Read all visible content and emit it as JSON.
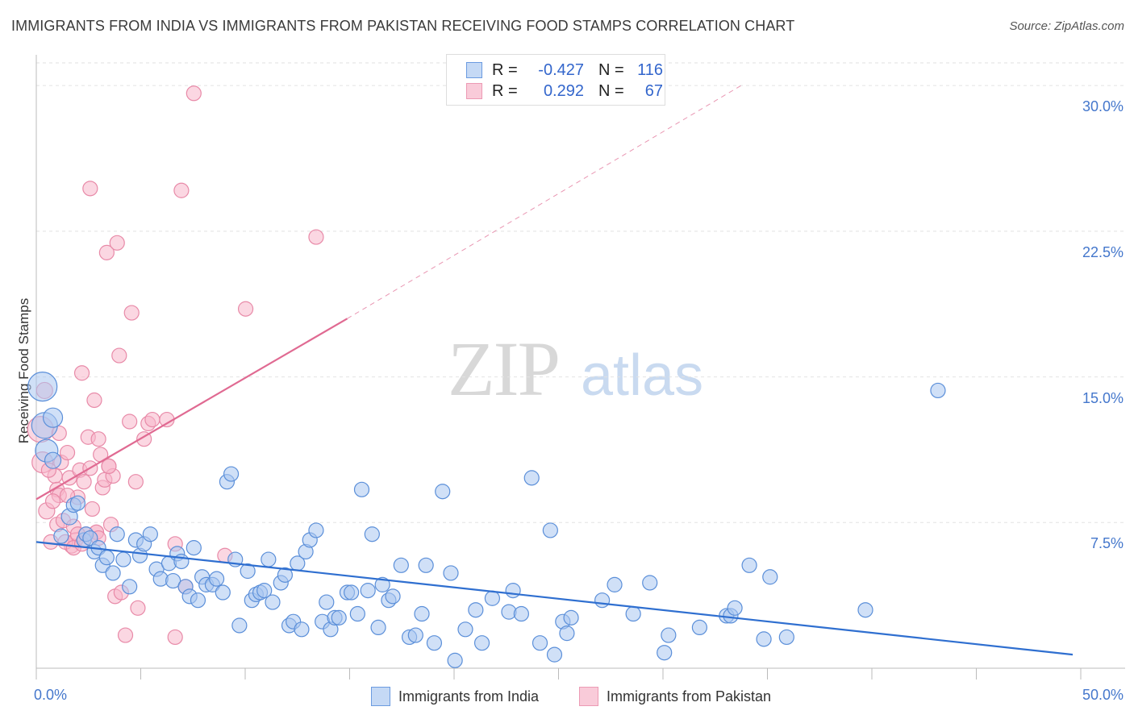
{
  "title": "IMMIGRANTS FROM INDIA VS IMMIGRANTS FROM PAKISTAN RECEIVING FOOD STAMPS CORRELATION CHART",
  "source": "Source: ZipAtlas.com",
  "watermark": {
    "zip": "ZIP",
    "atlas": "atlas"
  },
  "legend": {
    "r_label": "R =",
    "n_label": "N =",
    "india": {
      "r": "-0.427",
      "n": "116"
    },
    "pakistan": {
      "r": "0.292",
      "n": "67"
    }
  },
  "colors": {
    "india_fill": "#a9c7f0",
    "india_stroke": "#5b8fd9",
    "india_line": "#2f6fd0",
    "pakistan_fill": "#f7b6ca",
    "pakistan_stroke": "#e88aa8",
    "pakistan_line": "#e06a92",
    "tick_text": "#4477cc"
  },
  "chart_data": {
    "type": "scatter",
    "title": "IMMIGRANTS FROM INDIA VS IMMIGRANTS FROM PAKISTAN RECEIVING FOOD STAMPS CORRELATION CHART",
    "xlabel": "",
    "ylabel": "Receiving Food Stamps",
    "xlim": [
      0,
      50
    ],
    "ylim": [
      0,
      31.5
    ],
    "x_ticks": [
      "0.0%",
      "50.0%"
    ],
    "y_ticks": [
      {
        "value": 7.5,
        "label": "7.5%"
      },
      {
        "value": 15.0,
        "label": "15.0%"
      },
      {
        "value": 22.5,
        "label": "22.5%"
      },
      {
        "value": 30.0,
        "label": "30.0%"
      }
    ],
    "grid": true,
    "series": [
      {
        "name": "Immigrants from India",
        "trend": {
          "x": [
            0,
            50
          ],
          "y": [
            6.5,
            0.7
          ]
        },
        "points": [
          [
            0.3,
            14.5,
            18
          ],
          [
            0.4,
            12.5,
            16
          ],
          [
            0.5,
            11.2,
            14
          ],
          [
            0.8,
            12.9,
            12
          ],
          [
            0.8,
            10.7,
            10
          ],
          [
            1.6,
            7.8,
            10
          ],
          [
            1.8,
            8.4,
            9
          ],
          [
            2.0,
            8.5,
            9
          ],
          [
            2.3,
            6.6,
            9
          ],
          [
            2.4,
            6.9,
            9
          ],
          [
            2.6,
            6.7,
            9
          ],
          [
            2.8,
            6.0,
            9
          ],
          [
            3.0,
            6.2,
            9
          ],
          [
            3.2,
            5.3,
            9
          ],
          [
            3.4,
            5.7,
            9
          ],
          [
            3.7,
            4.9,
            9
          ],
          [
            3.9,
            6.9,
            9
          ],
          [
            4.2,
            5.6,
            9
          ],
          [
            4.5,
            4.2,
            9
          ],
          [
            4.8,
            6.6,
            9
          ],
          [
            5.0,
            5.8,
            9
          ],
          [
            5.2,
            6.4,
            9
          ],
          [
            5.5,
            6.9,
            9
          ],
          [
            5.8,
            5.1,
            9
          ],
          [
            6.0,
            4.6,
            9
          ],
          [
            6.4,
            5.4,
            9
          ],
          [
            6.6,
            4.5,
            9
          ],
          [
            6.8,
            5.9,
            9
          ],
          [
            7.0,
            5.5,
            9
          ],
          [
            7.2,
            4.2,
            9
          ],
          [
            7.4,
            3.7,
            9
          ],
          [
            7.6,
            6.2,
            9
          ],
          [
            7.8,
            3.5,
            9
          ],
          [
            8.0,
            4.7,
            9
          ],
          [
            8.2,
            4.3,
            9
          ],
          [
            8.5,
            4.3,
            9
          ],
          [
            8.7,
            4.6,
            9
          ],
          [
            9.0,
            3.9,
            9
          ],
          [
            9.2,
            9.6,
            9
          ],
          [
            9.4,
            10.0,
            9
          ],
          [
            9.6,
            5.6,
            9
          ],
          [
            9.8,
            2.2,
            9
          ],
          [
            10.2,
            5.0,
            9
          ],
          [
            10.4,
            3.5,
            9
          ],
          [
            10.6,
            3.8,
            9
          ],
          [
            10.8,
            3.9,
            9
          ],
          [
            11.0,
            4.0,
            9
          ],
          [
            11.2,
            5.6,
            9
          ],
          [
            11.4,
            3.4,
            9
          ],
          [
            11.8,
            4.4,
            9
          ],
          [
            12.0,
            4.8,
            9
          ],
          [
            12.2,
            2.2,
            9
          ],
          [
            12.4,
            2.4,
            9
          ],
          [
            12.8,
            2.0,
            9
          ],
          [
            12.6,
            5.4,
            9
          ],
          [
            13.0,
            6.0,
            9
          ],
          [
            13.2,
            6.6,
            9
          ],
          [
            13.5,
            7.1,
            9
          ],
          [
            13.8,
            2.4,
            9
          ],
          [
            14.0,
            3.4,
            9
          ],
          [
            14.2,
            2.0,
            9
          ],
          [
            14.4,
            2.6,
            9
          ],
          [
            14.6,
            2.6,
            9
          ],
          [
            15.0,
            3.9,
            9
          ],
          [
            15.2,
            3.9,
            9
          ],
          [
            15.5,
            2.8,
            9
          ],
          [
            15.7,
            9.2,
            9
          ],
          [
            16.0,
            4.0,
            9
          ],
          [
            16.2,
            6.9,
            9
          ],
          [
            16.5,
            2.1,
            9
          ],
          [
            16.7,
            4.3,
            9
          ],
          [
            17.0,
            3.5,
            9
          ],
          [
            17.2,
            3.7,
            9
          ],
          [
            17.6,
            5.3,
            9
          ],
          [
            18.0,
            1.6,
            9
          ],
          [
            18.3,
            1.7,
            9
          ],
          [
            18.6,
            2.8,
            9
          ],
          [
            18.8,
            5.3,
            9
          ],
          [
            19.2,
            1.3,
            9
          ],
          [
            19.6,
            9.1,
            9
          ],
          [
            20.0,
            4.9,
            9
          ],
          [
            20.2,
            0.4,
            9
          ],
          [
            20.7,
            2.0,
            9
          ],
          [
            21.2,
            3.0,
            9
          ],
          [
            21.5,
            1.3,
            9
          ],
          [
            22.0,
            3.6,
            9
          ],
          [
            22.8,
            2.9,
            9
          ],
          [
            23.0,
            4.0,
            9
          ],
          [
            23.4,
            2.8,
            9
          ],
          [
            23.9,
            9.8,
            9
          ],
          [
            24.3,
            1.3,
            9
          ],
          [
            24.8,
            7.1,
            9
          ],
          [
            25.0,
            0.7,
            9
          ],
          [
            25.4,
            2.4,
            9
          ],
          [
            25.6,
            1.8,
            9
          ],
          [
            25.8,
            2.6,
            9
          ],
          [
            27.3,
            3.5,
            9
          ],
          [
            27.9,
            4.3,
            9
          ],
          [
            28.8,
            2.8,
            9
          ],
          [
            29.6,
            4.4,
            9
          ],
          [
            30.3,
            0.8,
            9
          ],
          [
            30.5,
            1.7,
            9
          ],
          [
            32.0,
            2.1,
            9
          ],
          [
            33.3,
            2.7,
            9
          ],
          [
            33.5,
            2.7,
            9
          ],
          [
            33.7,
            3.1,
            9
          ],
          [
            34.4,
            5.3,
            9
          ],
          [
            35.1,
            1.5,
            9
          ],
          [
            35.4,
            4.7,
            9
          ],
          [
            36.2,
            1.6,
            9
          ],
          [
            40.0,
            3.0,
            9
          ],
          [
            43.5,
            14.3,
            9
          ],
          [
            1.2,
            6.8,
            9
          ]
        ]
      },
      {
        "name": "Immigrants from Pakistan",
        "trend": {
          "x": [
            0,
            15
          ],
          "y": [
            8.7,
            18.0
          ]
        },
        "trend_extension": {
          "x": [
            15,
            34
          ],
          "y": [
            18.0,
            30.0
          ]
        },
        "points": [
          [
            0.2,
            12.3,
            16
          ],
          [
            0.3,
            10.6,
            13
          ],
          [
            0.4,
            14.3,
            10
          ],
          [
            0.5,
            8.1,
            10
          ],
          [
            0.7,
            6.5,
            9
          ],
          [
            0.9,
            9.9,
            9
          ],
          [
            1.0,
            9.2,
            9
          ],
          [
            1.0,
            7.4,
            9
          ],
          [
            1.1,
            8.9,
            9
          ],
          [
            1.2,
            10.6,
            9
          ],
          [
            1.3,
            7.6,
            9
          ],
          [
            1.5,
            11.1,
            9
          ],
          [
            1.6,
            9.8,
            9
          ],
          [
            1.7,
            6.3,
            9
          ],
          [
            1.8,
            7.3,
            9
          ],
          [
            1.9,
            6.6,
            9
          ],
          [
            2.0,
            8.8,
            9
          ],
          [
            2.1,
            10.2,
            9
          ],
          [
            2.2,
            15.2,
            9
          ],
          [
            2.4,
            6.9,
            9
          ],
          [
            2.5,
            11.9,
            9
          ],
          [
            2.6,
            10.3,
            9
          ],
          [
            2.6,
            24.7,
            9
          ],
          [
            2.7,
            8.2,
            9
          ],
          [
            2.8,
            13.8,
            9
          ],
          [
            2.9,
            7.0,
            9
          ],
          [
            3.0,
            11.8,
            9
          ],
          [
            3.1,
            11.0,
            9
          ],
          [
            3.2,
            9.3,
            9
          ],
          [
            3.3,
            9.7,
            9
          ],
          [
            3.4,
            21.4,
            9
          ],
          [
            3.5,
            10.4,
            9
          ],
          [
            3.6,
            7.4,
            9
          ],
          [
            3.7,
            9.9,
            9
          ],
          [
            3.8,
            3.7,
            9
          ],
          [
            3.9,
            21.9,
            9
          ],
          [
            4.0,
            16.1,
            9
          ],
          [
            4.1,
            3.9,
            9
          ],
          [
            4.3,
            1.7,
            9
          ],
          [
            4.5,
            12.7,
            9
          ],
          [
            4.6,
            18.3,
            9
          ],
          [
            4.8,
            9.6,
            9
          ],
          [
            4.9,
            3.1,
            9
          ],
          [
            5.2,
            11.8,
            9
          ],
          [
            5.4,
            12.6,
            9
          ],
          [
            5.6,
            12.8,
            9
          ],
          [
            6.3,
            12.8,
            9
          ],
          [
            6.7,
            6.4,
            9
          ],
          [
            6.7,
            1.6,
            9
          ],
          [
            7.0,
            24.6,
            9
          ],
          [
            7.2,
            4.2,
            9
          ],
          [
            7.6,
            29.6,
            9
          ],
          [
            9.1,
            5.8,
            9
          ],
          [
            10.1,
            18.5,
            9
          ],
          [
            13.5,
            22.2,
            9
          ],
          [
            1.4,
            6.5,
            9
          ],
          [
            1.8,
            6.2,
            9
          ],
          [
            2.3,
            9.6,
            9
          ],
          [
            0.6,
            10.2,
            9
          ],
          [
            0.8,
            8.6,
            9
          ],
          [
            1.1,
            12.1,
            9
          ],
          [
            2.9,
            7.0,
            9
          ],
          [
            3.0,
            6.7,
            9
          ],
          [
            2.0,
            6.9,
            9
          ],
          [
            1.5,
            8.9,
            9
          ],
          [
            3.5,
            10.4,
            9
          ],
          [
            2.2,
            6.4,
            9
          ]
        ]
      }
    ]
  },
  "bottom_legend": {
    "india": "Immigrants from India",
    "pakistan": "Immigrants from Pakistan"
  }
}
